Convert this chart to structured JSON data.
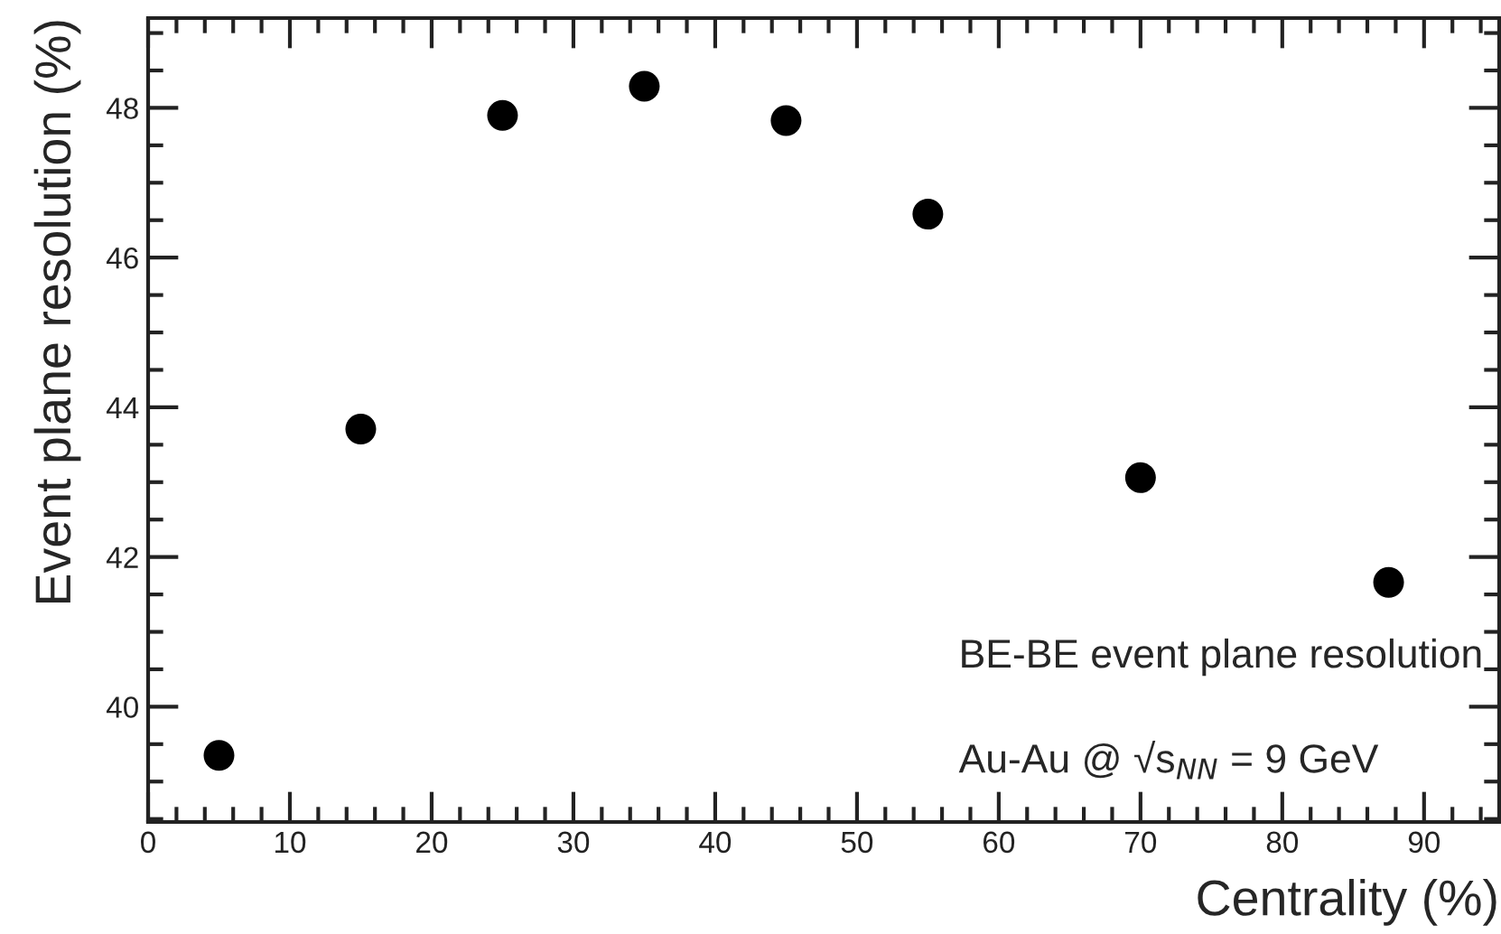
{
  "chart_data": {
    "type": "scatter",
    "xlabel": "Centrality (%)",
    "ylabel": "Event plane resolution (%)",
    "x": [
      5,
      15,
      25,
      35,
      45,
      55,
      70,
      87.5
    ],
    "series": [
      {
        "color": "#000000",
        "values": [
          39.35,
          43.71,
          47.9,
          48.29,
          47.83,
          46.58,
          43.06,
          41.66
        ]
      }
    ],
    "xlim": [
      0,
      95.3
    ],
    "ylim": [
      38.46,
      49.2
    ],
    "xticks": [
      0,
      10,
      20,
      30,
      40,
      50,
      60,
      70,
      80,
      90
    ],
    "yticks": [
      40,
      42,
      44,
      46,
      48
    ],
    "marker": "circle",
    "annotations": [
      "BE-BE event plane resolution",
      "Au-Au @ √s$_{NN}$ = 9 GeV"
    ]
  }
}
